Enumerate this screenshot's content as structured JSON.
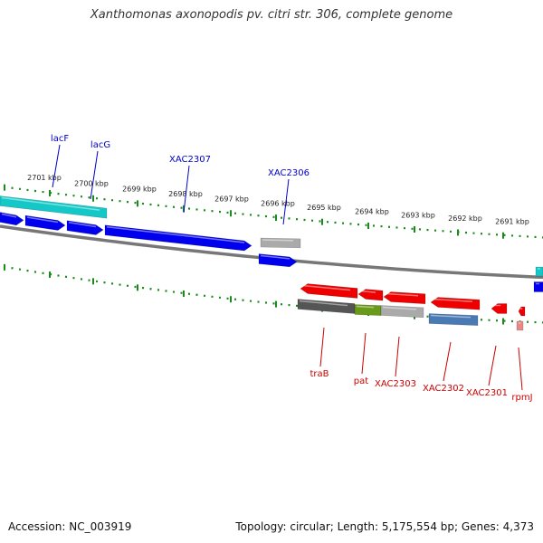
{
  "title": "Xanthomonas axonopodis pv. citri str. 306, complete genome",
  "footer": {
    "accession": "Accession: NC_003919",
    "info": "Topology: circular; Length: 5,175,554 bp; Genes: 4,373"
  },
  "colors": {
    "backbone": "#777777",
    "tick": "#1a8a1a",
    "forward_label": "#0000cc",
    "reverse_label": "#cc0000",
    "blue_gene": "#0000ee",
    "cyan_gene": "#14c8c8",
    "red_gene": "#ee0000",
    "grey_feature": "#aaaaaa",
    "steel_feature": "#4a7ab4",
    "olive_feature": "#6a9a1a",
    "dark_feature": "#555555"
  },
  "map": {
    "scale_labels": [
      "2701 kbp",
      "2700 kbp",
      "2699 kbp",
      "2698 kbp",
      "2697 kbp",
      "2696 kbp",
      "2695 kbp",
      "2694 kbp",
      "2693 kbp",
      "2692 kbp",
      "2691 kbp"
    ],
    "forward_genes": [
      "lacF",
      "lacG",
      "XAC2307",
      "XAC2306"
    ],
    "reverse_genes": [
      "traB",
      "pat",
      "XAC2303",
      "XAC2302",
      "XAC2301",
      "rpmJ"
    ]
  }
}
